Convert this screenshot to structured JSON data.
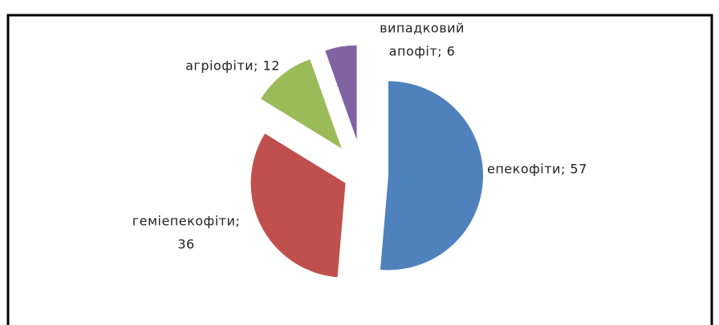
{
  "chart_data": {
    "type": "pie",
    "categories": [
      "епекофіти",
      "геміепекофіти",
      "агріофіти",
      "випадковий апофіт"
    ],
    "values": [
      57,
      36,
      12,
      6
    ],
    "value_labels": [
      [
        "епекофіти; 57"
      ],
      [
        "геміепекофіти;",
        "36"
      ],
      [
        "агріофіти; 12"
      ],
      [
        "випадковий",
        "апофіт; 6"
      ]
    ],
    "colors": [
      "#4f81bd",
      "#c0504d",
      "#9bbb59",
      "#8064a2"
    ],
    "exploded": true
  }
}
